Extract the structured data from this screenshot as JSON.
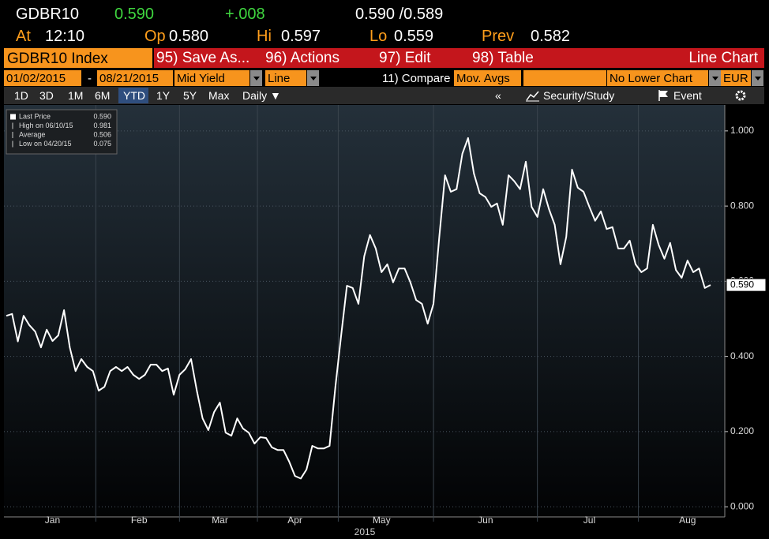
{
  "header": {
    "ticker": "GDBR10",
    "price": "0.590",
    "change": "+.008",
    "bid_ask": "0.590 /0.589",
    "at_label": "At",
    "time": "12:10",
    "open_label": "Op",
    "open": "0.580",
    "high_label": "Hi",
    "high": "0.597",
    "low_label": "Lo",
    "low": "0.559",
    "prev_label": "Prev",
    "prev": "0.582"
  },
  "menu": {
    "security": "GDBR10 Index",
    "items": [
      "95) Save As...",
      "96) Actions",
      "97) Edit",
      "98) Table"
    ],
    "view": "Line Chart"
  },
  "controls": {
    "start_date": "01/02/2015",
    "separator": "-",
    "end_date": "08/21/2015",
    "field": "Mid Yield",
    "style": "Line",
    "compare": "11) Compare",
    "studies": "Mov. Avgs",
    "lower_chart": "No Lower Chart",
    "currency": "EUR"
  },
  "ranges": {
    "buttons": [
      "1D",
      "3D",
      "1M",
      "6M",
      "YTD",
      "1Y",
      "5Y",
      "Max"
    ],
    "selected": "YTD",
    "frequency": "Daily",
    "collapse": "«",
    "security_study": "Security/Study",
    "event": "Event"
  },
  "chart_data": {
    "type": "line",
    "xlabel": "2015",
    "categories": [
      null,
      null,
      null,
      null,
      null,
      null,
      null,
      null,
      "Jan",
      null,
      null,
      null,
      null,
      null,
      null,
      null,
      null,
      null,
      null,
      null,
      null,
      null,
      null,
      "Feb",
      null,
      null,
      null,
      null,
      null,
      null,
      null,
      null,
      null,
      null,
      null,
      null,
      null,
      "Mar",
      null,
      null,
      null,
      null,
      null,
      null,
      null,
      null,
      null,
      null,
      null,
      null,
      "Apr",
      null,
      null,
      null,
      null,
      null,
      null,
      null,
      null,
      null,
      null,
      null,
      null,
      null,
      null,
      "May",
      null,
      null,
      null,
      null,
      null,
      null,
      null,
      null,
      null,
      null,
      null,
      null,
      null,
      null,
      null,
      null,
      null,
      "Jun",
      null,
      null,
      null,
      null,
      null,
      null,
      null,
      null,
      null,
      null,
      null,
      null,
      null,
      null,
      null,
      null,
      null,
      "Jul",
      null,
      null,
      null,
      null,
      null,
      null,
      null,
      null,
      null,
      null,
      null,
      null,
      null,
      null,
      null,
      null,
      "Aug",
      null,
      null,
      null,
      null
    ],
    "series": [
      {
        "name": "Last Price",
        "color": "#ffffff",
        "last": "0.590",
        "last_label": {
          "value": 0.59,
          "label": "0.590"
        },
        "values": [
          0.508,
          0.513,
          0.44,
          0.508,
          0.483,
          0.466,
          0.424,
          0.471,
          0.441,
          0.456,
          0.523,
          0.424,
          0.361,
          0.393,
          0.372,
          0.361,
          0.309,
          0.319,
          0.361,
          0.372,
          0.361,
          0.372,
          0.351,
          0.34,
          0.351,
          0.378,
          0.378,
          0.361,
          0.368,
          0.298,
          0.351,
          0.366,
          0.393,
          0.309,
          0.235,
          0.204,
          0.252,
          0.277,
          0.197,
          0.189,
          0.235,
          0.208,
          0.197,
          0.168,
          0.185,
          0.183,
          0.158,
          0.151,
          0.151,
          0.12,
          0.082,
          0.075,
          0.099,
          0.162,
          0.155,
          0.155,
          0.162,
          0.319,
          0.456,
          0.588,
          0.582,
          0.54,
          0.666,
          0.723,
          0.687,
          0.624,
          0.645,
          0.597,
          0.634,
          0.634,
          0.597,
          0.55,
          0.54,
          0.487,
          0.54,
          0.718,
          0.882,
          0.838,
          0.845,
          0.939,
          0.981,
          0.887,
          0.834,
          0.824,
          0.798,
          0.807,
          0.75,
          0.882,
          0.866,
          0.845,
          0.918,
          0.798,
          0.771,
          0.845,
          0.792,
          0.75,
          0.645,
          0.718,
          0.897,
          0.849,
          0.838,
          0.798,
          0.761,
          0.786,
          0.739,
          0.744,
          0.687,
          0.687,
          0.708,
          0.645,
          0.624,
          0.634,
          0.75,
          0.697,
          0.66,
          0.702,
          0.63,
          0.609,
          0.655,
          0.624,
          0.634,
          0.582,
          0.59
        ]
      }
    ],
    "stats": [
      {
        "label": "High on 06/10/15",
        "value": "0.981"
      },
      {
        "label": "Average",
        "value": "0.506"
      },
      {
        "label": "Low on 04/20/15",
        "value": "0.075"
      }
    ],
    "ylim": [
      -0.027,
      1.069
    ],
    "yticks": [
      {
        "value": 0,
        "label": "0.000"
      },
      {
        "value": 0.2,
        "label": "0.200"
      },
      {
        "value": 0.4,
        "label": "0.400"
      },
      {
        "value": 0.6,
        "label": "0.600"
      },
      {
        "value": 0.8,
        "label": "0.800"
      },
      {
        "value": 1,
        "label": "1.000"
      }
    ],
    "grid": true
  }
}
